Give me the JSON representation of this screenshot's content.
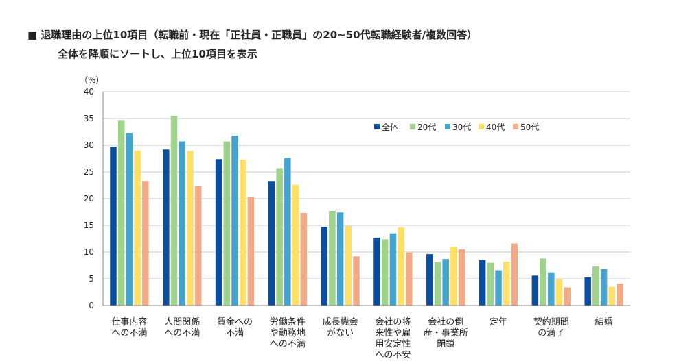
{
  "title_line1": "■ 退職理由の上位10項目（転職前・現在「正社員・正職員」の20~50代転職経験者/複数回答）",
  "title_line2": "全体を降順にソートし、上位10項目を表示",
  "chart_data": {
    "type": "bar",
    "ylabel": "（%）",
    "ylim": [
      0,
      40
    ],
    "yticks": [
      0,
      5,
      10,
      15,
      20,
      25,
      30,
      35,
      40
    ],
    "grid": true,
    "legend_position": "top-right",
    "categories": [
      [
        "仕事内容",
        "への不満"
      ],
      [
        "人間関係",
        "への不満"
      ],
      [
        "賃金への",
        "不満"
      ],
      [
        "労働条件",
        "や勤務地",
        "への不満"
      ],
      [
        "成長機会",
        "がない"
      ],
      [
        "会社の将",
        "来性や雇",
        "用安定性",
        "への不安"
      ],
      [
        "会社の倒",
        "産・事業所",
        "閉鎖"
      ],
      [
        "定年"
      ],
      [
        "契約期間",
        "の満了"
      ],
      [
        "結婚"
      ]
    ],
    "series": [
      {
        "name": "全体",
        "color": "#0b4d9e",
        "values": [
          29.7,
          29.2,
          27.4,
          23.3,
          14.7,
          12.7,
          9.6,
          8.5,
          5.6,
          5.3
        ]
      },
      {
        "name": "20代",
        "color": "#9fd28a",
        "values": [
          34.7,
          35.5,
          30.7,
          25.7,
          17.7,
          12.4,
          8.1,
          8.0,
          8.8,
          7.3
        ]
      },
      {
        "name": "30代",
        "color": "#45a3cf",
        "values": [
          32.3,
          30.7,
          31.8,
          27.6,
          17.4,
          13.5,
          8.7,
          6.6,
          6.2,
          6.8
        ]
      },
      {
        "name": "40代",
        "color": "#ffe066",
        "values": [
          29.0,
          28.9,
          27.3,
          22.6,
          14.9,
          14.6,
          11.0,
          8.2,
          4.9,
          3.5
        ]
      },
      {
        "name": "50代",
        "color": "#f3a984",
        "values": [
          23.3,
          22.3,
          20.3,
          17.3,
          9.2,
          9.9,
          10.5,
          11.6,
          3.4,
          4.1
        ]
      }
    ]
  }
}
